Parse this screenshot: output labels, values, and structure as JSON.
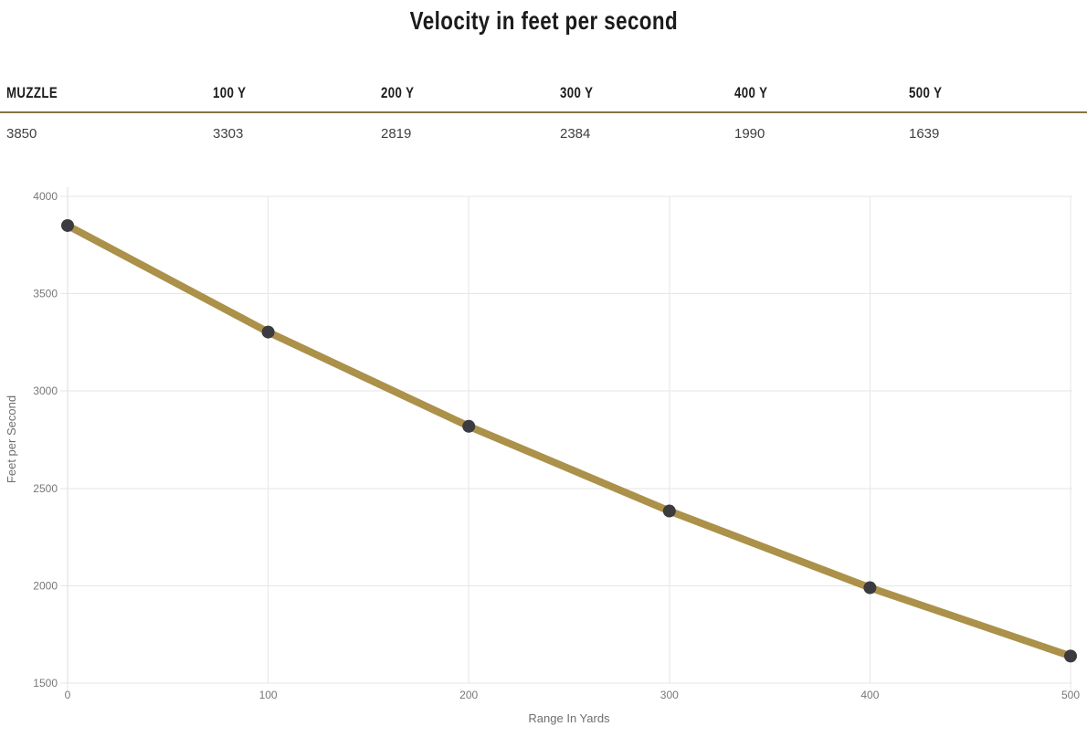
{
  "page": {
    "title": "Velocity in feet per second"
  },
  "table": {
    "headers": [
      "MUZZLE",
      "100 Y",
      "200 Y",
      "300 Y",
      "400 Y",
      "500 Y"
    ],
    "values": [
      "3850",
      "3303",
      "2819",
      "2384",
      "1990",
      "1639"
    ]
  },
  "chart_data": {
    "type": "line",
    "title": "Velocity in feet per second",
    "xlabel": "Range In Yards",
    "ylabel": "Feet per Second",
    "x": [
      0,
      100,
      200,
      300,
      400,
      500
    ],
    "series": [
      {
        "name": "Velocity in feet per second",
        "values": [
          3850,
          3303,
          2819,
          2384,
          1990,
          1639
        ]
      }
    ],
    "xlim": [
      0,
      500
    ],
    "ylim": [
      1500,
      4000
    ],
    "x_ticks": [
      0,
      100,
      200,
      300,
      400,
      500
    ],
    "y_ticks": [
      1500,
      2000,
      2500,
      3000,
      3500,
      4000
    ],
    "grid": true,
    "legend_position": "none",
    "line_color": "#ab9149",
    "marker_color": "#3b3b40",
    "grid_color": "#e6e6e6",
    "axis_border_color": "#dedede",
    "tick_label_color": "#777777",
    "axis_title_color": "#6e6e6e"
  },
  "colors": {
    "divider": "#887342",
    "title_text": "#1b1b1b",
    "header_text": "#1d1d1d",
    "value_text": "#3f3f3f"
  }
}
